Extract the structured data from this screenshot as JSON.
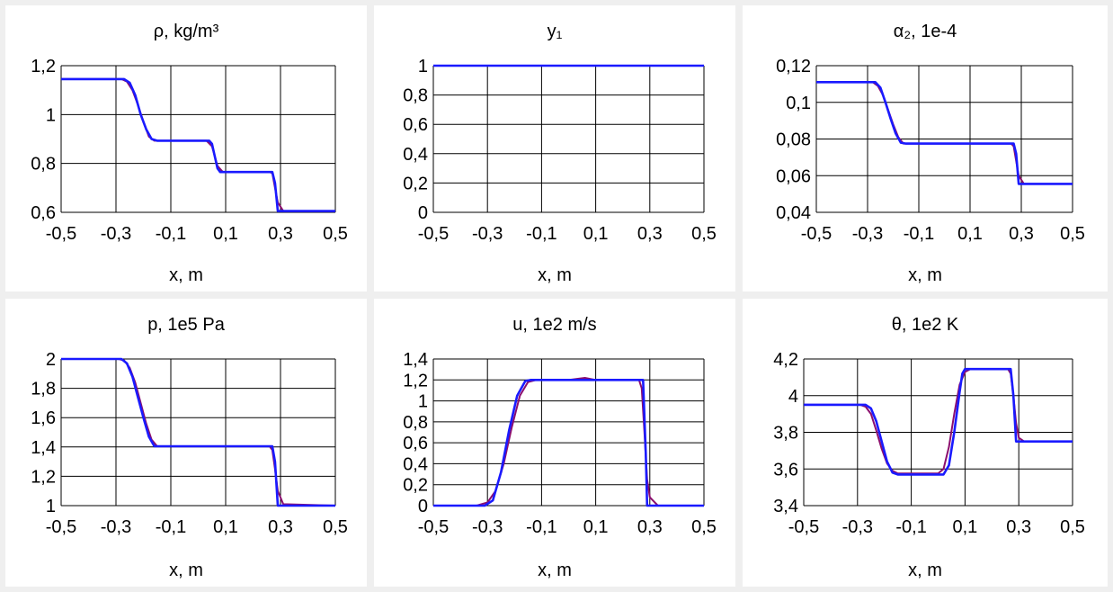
{
  "colors": {
    "background": "#efefef",
    "panel": "#ffffff",
    "grid": "#000000",
    "series_blue": "#1a1aff",
    "series_purple": "#8b0e6e"
  },
  "chart_data": [
    {
      "type": "line",
      "title": "ρ,  kg/m³",
      "xlabel": "x, m",
      "xlim": [
        -0.5,
        0.5
      ],
      "ylim": [
        0.6,
        1.2
      ],
      "x_ticks": [
        "-0,5",
        "-0,3",
        "-0,1",
        "0,1",
        "0,3",
        "0,5"
      ],
      "y_ticks": [
        "0,6",
        "0,8",
        "1",
        "1,2"
      ],
      "series": [
        {
          "color": "#8b0e6e",
          "x": [
            -0.5,
            -0.28,
            -0.26,
            -0.24,
            -0.22,
            -0.2,
            -0.18,
            -0.16,
            0.03,
            0.05,
            0.07,
            0.09,
            0.26,
            0.27,
            0.28,
            0.29,
            0.31,
            0.5
          ],
          "y": [
            1.145,
            1.145,
            1.135,
            1.1,
            1.04,
            0.97,
            0.91,
            0.893,
            0.893,
            0.87,
            0.79,
            0.765,
            0.765,
            0.76,
            0.7,
            0.64,
            0.605,
            0.605
          ]
        },
        {
          "color": "#1a1aff",
          "x": [
            -0.5,
            -0.27,
            -0.25,
            -0.23,
            -0.21,
            -0.19,
            -0.17,
            -0.15,
            0.04,
            0.05,
            0.07,
            0.08,
            0.27,
            0.28,
            0.29,
            0.5
          ],
          "y": [
            1.145,
            1.145,
            1.13,
            1.08,
            1.0,
            0.94,
            0.9,
            0.893,
            0.893,
            0.88,
            0.78,
            0.765,
            0.765,
            0.72,
            0.605,
            0.605
          ]
        }
      ]
    },
    {
      "type": "line",
      "title": "y₁",
      "xlabel": "x, m",
      "xlim": [
        -0.5,
        0.5
      ],
      "ylim": [
        0,
        1
      ],
      "x_ticks": [
        "-0,5",
        "-0,3",
        "-0,1",
        "0,1",
        "0,3",
        "0,5"
      ],
      "y_ticks": [
        "0",
        "0,2",
        "0,4",
        "0,6",
        "0,8",
        "1"
      ],
      "series": [
        {
          "color": "#8b0e6e",
          "x": [
            -0.5,
            0.5
          ],
          "y": [
            1,
            1
          ]
        },
        {
          "color": "#1a1aff",
          "x": [
            -0.5,
            0.5
          ],
          "y": [
            1,
            1
          ]
        }
      ]
    },
    {
      "type": "line",
      "title": "α₂,  1e-4",
      "xlabel": "x, m",
      "xlim": [
        -0.5,
        0.5
      ],
      "ylim": [
        0.04,
        0.12
      ],
      "x_ticks": [
        "-0,5",
        "-0,3",
        "-0,1",
        "0,1",
        "0,3",
        "0,5"
      ],
      "y_ticks": [
        "0,04",
        "0,06",
        "0,08",
        "0,1",
        "0,12"
      ],
      "series": [
        {
          "color": "#8b0e6e",
          "x": [
            -0.5,
            -0.28,
            -0.26,
            -0.24,
            -0.22,
            -0.2,
            -0.18,
            -0.16,
            0.26,
            0.27,
            0.28,
            0.29,
            0.31,
            0.5
          ],
          "y": [
            0.111,
            0.111,
            0.109,
            0.104,
            0.096,
            0.088,
            0.081,
            0.0775,
            0.0775,
            0.076,
            0.068,
            0.06,
            0.0555,
            0.0555
          ]
        },
        {
          "color": "#1a1aff",
          "x": [
            -0.5,
            -0.27,
            -0.25,
            -0.23,
            -0.21,
            -0.19,
            -0.17,
            -0.15,
            0.27,
            0.28,
            0.29,
            0.5
          ],
          "y": [
            0.111,
            0.111,
            0.108,
            0.1,
            0.091,
            0.083,
            0.078,
            0.0775,
            0.0775,
            0.072,
            0.0555,
            0.0555
          ]
        }
      ]
    },
    {
      "type": "line",
      "title": "p,  1e5 Pa",
      "xlabel": "x, m",
      "xlim": [
        -0.5,
        0.5
      ],
      "ylim": [
        1,
        2
      ],
      "x_ticks": [
        "-0,5",
        "-0,3",
        "-0,1",
        "0,1",
        "0,3",
        "0,5"
      ],
      "y_ticks": [
        "1",
        "1,2",
        "1,4",
        "1,6",
        "1,8",
        "2"
      ],
      "series": [
        {
          "color": "#8b0e6e",
          "x": [
            -0.5,
            -0.29,
            -0.27,
            -0.25,
            -0.23,
            -0.21,
            -0.19,
            -0.17,
            -0.15,
            0.26,
            0.27,
            0.28,
            0.29,
            0.31,
            0.5
          ],
          "y": [
            2,
            2,
            1.99,
            1.94,
            1.84,
            1.7,
            1.56,
            1.45,
            1.405,
            1.405,
            1.38,
            1.25,
            1.1,
            1.01,
            1.0
          ]
        },
        {
          "color": "#1a1aff",
          "x": [
            -0.5,
            -0.28,
            -0.26,
            -0.24,
            -0.22,
            -0.2,
            -0.18,
            -0.16,
            0.27,
            0.28,
            0.29,
            0.5
          ],
          "y": [
            2,
            2,
            1.97,
            1.88,
            1.74,
            1.6,
            1.47,
            1.405,
            1.405,
            1.3,
            1.0,
            1.0
          ]
        }
      ]
    },
    {
      "type": "line",
      "title": "u,  1e2 m/s",
      "xlabel": "x, m",
      "xlim": [
        -0.5,
        0.5
      ],
      "ylim": [
        0,
        1.4
      ],
      "x_ticks": [
        "-0,5",
        "-0,3",
        "-0,1",
        "0,1",
        "0,3",
        "0,5"
      ],
      "y_ticks": [
        "0",
        "0,2",
        "0,4",
        "0,6",
        "0,8",
        "1",
        "1,2",
        "1,4"
      ],
      "series": [
        {
          "color": "#8b0e6e",
          "x": [
            -0.5,
            -0.34,
            -0.3,
            -0.27,
            -0.24,
            -0.21,
            -0.18,
            -0.15,
            -0.12,
            0.0,
            0.06,
            0.1,
            0.26,
            0.27,
            0.28,
            0.29,
            0.3,
            0.33,
            0.5
          ],
          "y": [
            0,
            0,
            0.03,
            0.14,
            0.4,
            0.75,
            1.05,
            1.18,
            1.2,
            1.2,
            1.22,
            1.2,
            1.2,
            1.12,
            0.7,
            0.25,
            0.08,
            0.0,
            0.0
          ]
        },
        {
          "color": "#1a1aff",
          "x": [
            -0.5,
            -0.31,
            -0.28,
            -0.25,
            -0.22,
            -0.19,
            -0.16,
            -0.14,
            0.26,
            0.275,
            0.285,
            0.29,
            0.5
          ],
          "y": [
            0,
            0,
            0.05,
            0.32,
            0.72,
            1.05,
            1.19,
            1.2,
            1.2,
            1.2,
            0.5,
            0.0,
            0.0
          ]
        }
      ]
    },
    {
      "type": "line",
      "title": "θ,  1e2 K",
      "xlabel": "x, m",
      "xlim": [
        -0.5,
        0.5
      ],
      "ylim": [
        3.4,
        4.2
      ],
      "x_ticks": [
        "-0,5",
        "-0,3",
        "-0,1",
        "0,1",
        "0,3",
        "0,5"
      ],
      "y_ticks": [
        "3,4",
        "3,6",
        "3,8",
        "4",
        "4,2"
      ],
      "series": [
        {
          "color": "#8b0e6e",
          "x": [
            -0.5,
            -0.29,
            -0.27,
            -0.25,
            -0.23,
            -0.21,
            -0.19,
            -0.17,
            -0.15,
            0.0,
            0.02,
            0.04,
            0.06,
            0.08,
            0.1,
            0.12,
            0.26,
            0.27,
            0.28,
            0.29,
            0.3,
            0.32,
            0.5
          ],
          "y": [
            3.95,
            3.95,
            3.94,
            3.9,
            3.81,
            3.71,
            3.63,
            3.59,
            3.575,
            3.575,
            3.6,
            3.72,
            3.9,
            4.06,
            4.13,
            4.145,
            4.145,
            4.12,
            4.0,
            3.85,
            3.77,
            3.75,
            3.75
          ]
        },
        {
          "color": "#1a1aff",
          "x": [
            -0.5,
            -0.27,
            -0.25,
            -0.23,
            -0.21,
            -0.19,
            -0.17,
            -0.15,
            0.02,
            0.04,
            0.06,
            0.08,
            0.09,
            0.1,
            0.27,
            0.28,
            0.29,
            0.5
          ],
          "y": [
            3.95,
            3.95,
            3.93,
            3.86,
            3.75,
            3.64,
            3.58,
            3.57,
            3.57,
            3.62,
            3.8,
            4.02,
            4.12,
            4.145,
            4.145,
            4.0,
            3.75,
            3.75
          ]
        }
      ]
    }
  ]
}
